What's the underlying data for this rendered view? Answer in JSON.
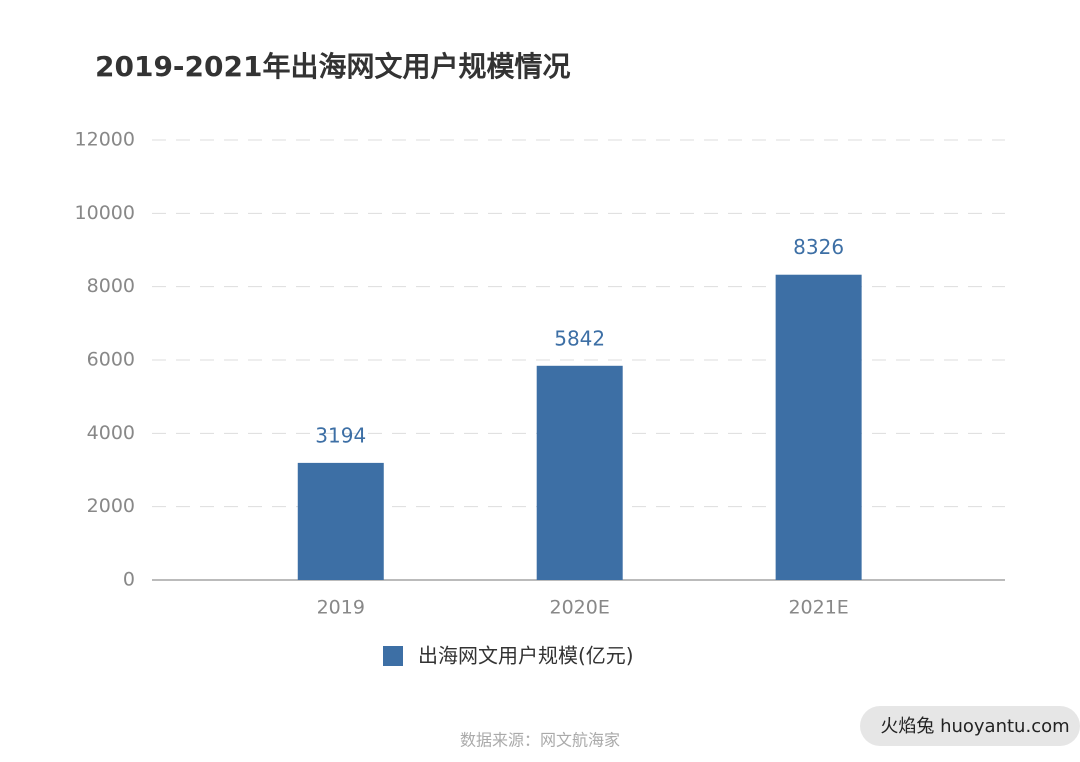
{
  "chart_data": {
    "type": "bar",
    "title": "2019-2021年出海网文用户规模情况",
    "categories": [
      "2019",
      "2020E",
      "2021E"
    ],
    "series": [
      {
        "name": "出海网文用户规模(亿元)",
        "color": "#3d6fa5",
        "values": [
          3194,
          5842,
          8326
        ]
      }
    ],
    "ylim": [
      0,
      12000
    ],
    "yticks": [
      0,
      2000,
      4000,
      6000,
      8000,
      10000,
      12000
    ],
    "grid": true,
    "source": "数据来源：网文航海家"
  },
  "watermark": "火焰兔 huoyantu.com"
}
